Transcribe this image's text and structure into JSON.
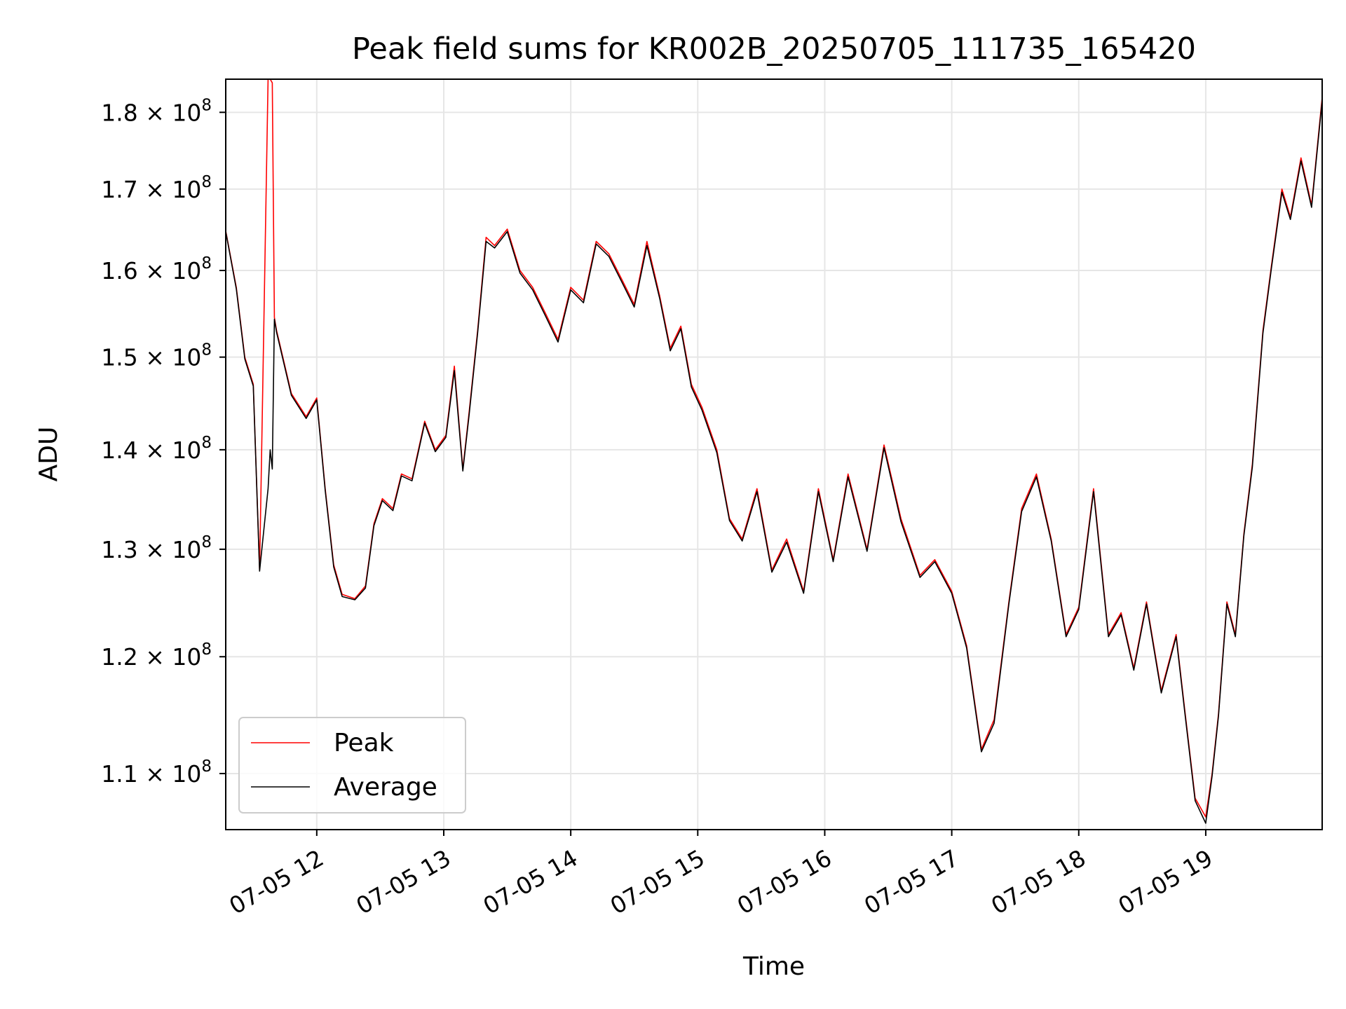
{
  "chart_data": {
    "type": "line",
    "title": "Peak field sums for KR002B_20250705_111735_165420",
    "xlabel": "Time",
    "ylabel": "ADU",
    "yscale": "log",
    "grid": true,
    "legend_position": "lower-left",
    "xlim": [
      "07-05 11:17",
      "07-05 19:55"
    ],
    "ylim": [
      105500000,
      184500000
    ],
    "x_ticks": [
      {
        "label": "07-05 12",
        "value": "07-05 12:00"
      },
      {
        "label": "07-05 13",
        "value": "07-05 13:00"
      },
      {
        "label": "07-05 14",
        "value": "07-05 14:00"
      },
      {
        "label": "07-05 15",
        "value": "07-05 15:00"
      },
      {
        "label": "07-05 16",
        "value": "07-05 16:00"
      },
      {
        "label": "07-05 17",
        "value": "07-05 17:00"
      },
      {
        "label": "07-05 18",
        "value": "07-05 18:00"
      },
      {
        "label": "07-05 19",
        "value": "07-05 19:00"
      }
    ],
    "y_ticks": [
      {
        "mantissa": "1.1",
        "value": 110000000
      },
      {
        "mantissa": "1.2",
        "value": 120000000
      },
      {
        "mantissa": "1.3",
        "value": 130000000
      },
      {
        "mantissa": "1.4",
        "value": 140000000
      },
      {
        "mantissa": "1.5",
        "value": 150000000
      },
      {
        "mantissa": "1.6",
        "value": 160000000
      },
      {
        "mantissa": "1.7",
        "value": 170000000
      },
      {
        "mantissa": "1.8",
        "value": 180000000
      }
    ],
    "tick_base": "× 10",
    "tick_exponent": "8",
    "series": [
      {
        "name": "Peak",
        "color": "#ff0000",
        "x": [
          "07-05 11:17",
          "07-05 11:22",
          "07-05 11:26",
          "07-05 11:30",
          "07-05 11:33",
          "07-05 11:37",
          "07-05 11:38",
          "07-05 11:39",
          "07-05 11:40",
          "07-05 11:41",
          "07-05 11:42",
          "07-05 11:48",
          "07-05 11:55",
          "07-05 12:00",
          "07-05 12:04",
          "07-05 12:08",
          "07-05 12:12",
          "07-05 12:18",
          "07-05 12:23",
          "07-05 12:27",
          "07-05 12:31",
          "07-05 12:36",
          "07-05 12:40",
          "07-05 12:45",
          "07-05 12:51",
          "07-05 12:56",
          "07-05 13:01",
          "07-05 13:05",
          "07-05 13:09",
          "07-05 13:12",
          "07-05 13:16",
          "07-05 13:20",
          "07-05 13:24",
          "07-05 13:30",
          "07-05 13:36",
          "07-05 13:42",
          "07-05 13:48",
          "07-05 13:54",
          "07-05 14:00",
          "07-05 14:06",
          "07-05 14:12",
          "07-05 14:18",
          "07-05 14:24",
          "07-05 14:30",
          "07-05 14:36",
          "07-05 14:42",
          "07-05 14:47",
          "07-05 14:52",
          "07-05 14:57",
          "07-05 15:02",
          "07-05 15:09",
          "07-05 15:15",
          "07-05 15:21",
          "07-05 15:28",
          "07-05 15:35",
          "07-05 15:42",
          "07-05 15:50",
          "07-05 15:57",
          "07-05 16:04",
          "07-05 16:11",
          "07-05 16:20",
          "07-05 16:28",
          "07-05 16:36",
          "07-05 16:45",
          "07-05 16:52",
          "07-05 17:00",
          "07-05 17:07",
          "07-05 17:14",
          "07-05 17:20",
          "07-05 17:27",
          "07-05 17:33",
          "07-05 17:40",
          "07-05 17:47",
          "07-05 17:54",
          "07-05 18:00",
          "07-05 18:07",
          "07-05 18:14",
          "07-05 18:20",
          "07-05 18:26",
          "07-05 18:32",
          "07-05 18:39",
          "07-05 18:46",
          "07-05 18:50",
          "07-05 18:55",
          "07-05 19:00",
          "07-05 19:03",
          "07-05 19:06",
          "07-05 19:10",
          "07-05 19:14",
          "07-05 19:18",
          "07-05 19:22",
          "07-05 19:27",
          "07-05 19:31",
          "07-05 19:36",
          "07-05 19:40",
          "07-05 19:45",
          "07-05 19:50",
          "07-05 19:55"
        ],
        "y": [
          164800000,
          158000000,
          150000000,
          147000000,
          128000000,
          184500000,
          184500000,
          184000000,
          154500000,
          153000000,
          152000000,
          146000000,
          143500000,
          145500000,
          136000000,
          128500000,
          125700000,
          125300000,
          126500000,
          132500000,
          135000000,
          134000000,
          137500000,
          137000000,
          143000000,
          140000000,
          141500000,
          149000000,
          138000000,
          144000000,
          153000000,
          164000000,
          163000000,
          165000000,
          160000000,
          158000000,
          155000000,
          152000000,
          158000000,
          156500000,
          163500000,
          162000000,
          159000000,
          156000000,
          163500000,
          157000000,
          151000000,
          153500000,
          147000000,
          144500000,
          140000000,
          133000000,
          131000000,
          136000000,
          128000000,
          131000000,
          126000000,
          136000000,
          129000000,
          137500000,
          130000000,
          140500000,
          133000000,
          127500000,
          129000000,
          126000000,
          121000000,
          112000000,
          114500000,
          125000000,
          134000000,
          137500000,
          131000000,
          122000000,
          124500000,
          136000000,
          122000000,
          124000000,
          119000000,
          125000000,
          117000000,
          122000000,
          115500000,
          108000000,
          106500000,
          110000000,
          115000000,
          125000000,
          122000000,
          131500000,
          138500000,
          153000000,
          160500000,
          170000000,
          166500000,
          174000000,
          168000000,
          182000000
        ]
      },
      {
        "name": "Average",
        "color": "#000000",
        "x": [
          "07-05 11:17",
          "07-05 11:22",
          "07-05 11:26",
          "07-05 11:30",
          "07-05 11:33",
          "07-05 11:37",
          "07-05 11:38",
          "07-05 11:39",
          "07-05 11:40",
          "07-05 11:41",
          "07-05 11:42",
          "07-05 11:48",
          "07-05 11:55",
          "07-05 12:00",
          "07-05 12:04",
          "07-05 12:08",
          "07-05 12:12",
          "07-05 12:18",
          "07-05 12:23",
          "07-05 12:27",
          "07-05 12:31",
          "07-05 12:36",
          "07-05 12:40",
          "07-05 12:45",
          "07-05 12:51",
          "07-05 12:56",
          "07-05 13:01",
          "07-05 13:05",
          "07-05 13:09",
          "07-05 13:12",
          "07-05 13:16",
          "07-05 13:20",
          "07-05 13:24",
          "07-05 13:30",
          "07-05 13:36",
          "07-05 13:42",
          "07-05 13:48",
          "07-05 13:54",
          "07-05 14:00",
          "07-05 14:06",
          "07-05 14:12",
          "07-05 14:18",
          "07-05 14:24",
          "07-05 14:30",
          "07-05 14:36",
          "07-05 14:42",
          "07-05 14:47",
          "07-05 14:52",
          "07-05 14:57",
          "07-05 15:02",
          "07-05 15:09",
          "07-05 15:15",
          "07-05 15:21",
          "07-05 15:28",
          "07-05 15:35",
          "07-05 15:42",
          "07-05 15:50",
          "07-05 15:57",
          "07-05 16:04",
          "07-05 16:11",
          "07-05 16:20",
          "07-05 16:28",
          "07-05 16:36",
          "07-05 16:45",
          "07-05 16:52",
          "07-05 17:00",
          "07-05 17:07",
          "07-05 17:14",
          "07-05 17:20",
          "07-05 17:27",
          "07-05 17:33",
          "07-05 17:40",
          "07-05 17:47",
          "07-05 17:54",
          "07-05 18:00",
          "07-05 18:07",
          "07-05 18:14",
          "07-05 18:20",
          "07-05 18:26",
          "07-05 18:32",
          "07-05 18:39",
          "07-05 18:46",
          "07-05 18:50",
          "07-05 18:55",
          "07-05 19:00",
          "07-05 19:03",
          "07-05 19:06",
          "07-05 19:10",
          "07-05 19:14",
          "07-05 19:18",
          "07-05 19:22",
          "07-05 19:27",
          "07-05 19:31",
          "07-05 19:36",
          "07-05 19:40",
          "07-05 19:45",
          "07-05 19:50",
          "07-05 19:55"
        ],
        "y": [
          164700000,
          157800000,
          149800000,
          146800000,
          127900000,
          136000000,
          140000000,
          138000000,
          154300000,
          152800000,
          151800000,
          145800000,
          143300000,
          145300000,
          135800000,
          128300000,
          125500000,
          125200000,
          126300000,
          132300000,
          134800000,
          133800000,
          137300000,
          136800000,
          142800000,
          139800000,
          141300000,
          148500000,
          137800000,
          143700000,
          152700000,
          163500000,
          162700000,
          164700000,
          159700000,
          157700000,
          154700000,
          151700000,
          157700000,
          156200000,
          163200000,
          161700000,
          158700000,
          155700000,
          163000000,
          156700000,
          150700000,
          153200000,
          146700000,
          144200000,
          139700000,
          132800000,
          130800000,
          135700000,
          127800000,
          130700000,
          125800000,
          135700000,
          128800000,
          137200000,
          129800000,
          140200000,
          132700000,
          127300000,
          128800000,
          125800000,
          120800000,
          111800000,
          114200000,
          124800000,
          133700000,
          137200000,
          130800000,
          121800000,
          124300000,
          135700000,
          121800000,
          123800000,
          118800000,
          124800000,
          116800000,
          121800000,
          115300000,
          107800000,
          106000000,
          109800000,
          114800000,
          124800000,
          121800000,
          131300000,
          138200000,
          152700000,
          160200000,
          169600000,
          166200000,
          173600000,
          167700000,
          181600000
        ]
      }
    ]
  }
}
